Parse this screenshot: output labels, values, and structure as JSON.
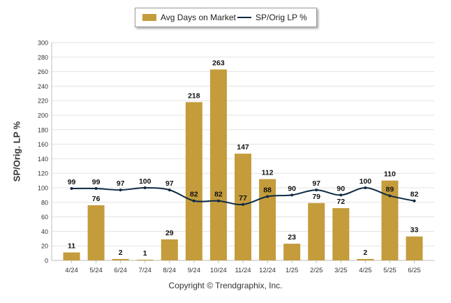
{
  "chart_data": {
    "type": "bar",
    "categories": [
      "4/24",
      "5/24",
      "6/24",
      "7/24",
      "8/24",
      "9/24",
      "10/24",
      "11/24",
      "12/24",
      "1/25",
      "2/25",
      "3/25",
      "4/25",
      "5/25",
      "6/25"
    ],
    "series": [
      {
        "name": "Avg Days on Market",
        "type": "bar",
        "color": "#c49c3c",
        "values": [
          11,
          76,
          2,
          1,
          29,
          218,
          263,
          147,
          112,
          23,
          79,
          72,
          2,
          110,
          33
        ]
      },
      {
        "name": "SP/Orig LP %",
        "type": "line",
        "color": "#0f2a44",
        "values": [
          99,
          99,
          97,
          100,
          97,
          82,
          82,
          77,
          88,
          90,
          97,
          90,
          100,
          89,
          82
        ]
      }
    ],
    "ylabel": "SP/Orig. LP %",
    "ylim": [
      0,
      300
    ],
    "yticks": [
      0,
      20,
      40,
      60,
      80,
      100,
      120,
      140,
      160,
      180,
      200,
      220,
      240,
      260,
      280,
      300
    ],
    "grid": true,
    "legend": "top-center"
  },
  "footer": "Copyright © Trendgraphix, Inc."
}
